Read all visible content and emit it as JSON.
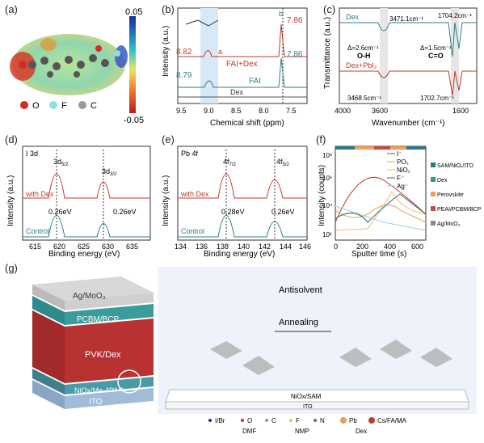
{
  "panel_labels": {
    "a": "(a)",
    "b": "(b)",
    "c": "(c)",
    "d": "(d)",
    "e": "(e)",
    "f": "(f)",
    "g": "(g)"
  },
  "a": {
    "colorbar_max": "0.05",
    "colorbar_min": "-0.05",
    "legend": [
      {
        "label": "O",
        "color": "#d42a2a"
      },
      {
        "label": "F",
        "color": "#8fdde8"
      },
      {
        "label": "C",
        "color": "#9a9a9a"
      }
    ]
  },
  "b": {
    "ylabel": "Intensity (a.u.)",
    "xlabel": "Chemical shift (ppm)",
    "xticks": [
      "9.5",
      "9.0",
      "8.5",
      "8.0",
      "7.5"
    ],
    "peaks_top": {
      "a": "8.82",
      "b": "7.86"
    },
    "peaks_mid": {
      "a": "8.79",
      "b": "7.86"
    },
    "series": [
      "FAI+Dex",
      "FAI",
      "Dex"
    ],
    "mol": {
      "a": "a",
      "b": "b"
    }
  },
  "c": {
    "ylabel": "Transmittance (a.u.)",
    "xlabel": "Wavenumber (cm⁻¹)",
    "xticks": [
      "4000",
      "3600",
      "1600"
    ],
    "series": [
      "Dex",
      "Dex+PbI₂"
    ],
    "ann_top_left": "3471.1cm⁻¹",
    "ann_top_right": "1704.2cm⁻¹",
    "delta_oh": "Δ=2.6cm⁻¹",
    "oh": "O-H",
    "delta_co": "Δ=1.5cm⁻¹",
    "co": "C=O",
    "ann_bot_left": "3468.5cm⁻¹",
    "ann_bot_right": "1702.7cm⁻¹"
  },
  "d": {
    "title": "I 3d",
    "ylabel": "Intensity (a.u.)",
    "xlabel": "Binding energy (eV)",
    "xticks": [
      "615",
      "620",
      "625",
      "630",
      "635"
    ],
    "peak1": "3d",
    "peak1_sub": "5/2",
    "peak2": "3d",
    "peak2_sub": "3/2",
    "shift1": "0.26eV",
    "shift2": "0.26eV",
    "series": [
      "with Dex",
      "Control"
    ]
  },
  "e": {
    "title": "Pb 4f",
    "ylabel": "Intensity (a.u.)",
    "xlabel": "Binding energy (eV)",
    "xticks": [
      "134",
      "136",
      "138",
      "140",
      "142",
      "144",
      "146"
    ],
    "peak1": "4f",
    "peak1_sub": "7/2",
    "peak2": "4f",
    "peak2_sub": "5/2",
    "shift1": "0.28eV",
    "shift2": "0.26eV",
    "series": [
      "with Dex",
      "Control"
    ]
  },
  "f": {
    "ylabel": "Intensity (counts)",
    "xlabel": "Sputter time (s)",
    "xticks": [
      "0",
      "200",
      "400",
      "600"
    ],
    "yticks": [
      "10²",
      "10⁴",
      "10⁶",
      "10⁸"
    ],
    "series": [
      {
        "name": "I⁻",
        "color": "#c0392b"
      },
      {
        "name": "PO₃",
        "color": "#e8a44a"
      },
      {
        "name": "NiO₂",
        "color": "#f0b97a"
      },
      {
        "name": "F⁻",
        "color": "#2d6e6e"
      },
      {
        "name": "Ag⁻",
        "color": "#9ad1e0"
      }
    ],
    "layers": [
      {
        "name": "SAM/NiOₓ/ITO",
        "color": "#2a7a8a"
      },
      {
        "name": "Dex",
        "color": "#2f9a8a"
      },
      {
        "name": "Perovskite",
        "color": "#f0a050"
      },
      {
        "name": "PEAI/PCBM/BCP",
        "color": "#c64a4a"
      },
      {
        "name": "Ag/MoO₃",
        "color": "#888888"
      }
    ]
  },
  "g": {
    "stack": [
      "Ag/MoO₃",
      "PCBM/BCP",
      "PVK/Dex",
      "NiOx/Me-4PACz",
      "ITO"
    ],
    "antisolvent": "Antisolvent",
    "annealing": "Annealing",
    "substrate1": "NiOx/SAM",
    "substrate2": "ITO",
    "legend": [
      {
        "label": "I/Br",
        "color": "#2a2a8a"
      },
      {
        "label": "O",
        "color": "#d42a2a"
      },
      {
        "label": "C",
        "color": "#9a9a9a"
      },
      {
        "label": "F",
        "color": "#f3c74b"
      },
      {
        "label": "N",
        "color": "#4a6ad6"
      },
      {
        "label": "Pb",
        "color": "#e0a060"
      },
      {
        "label": "Cs/FA/MA",
        "color": "#c0392b"
      },
      {
        "label": "DMF",
        "color": "#666"
      },
      {
        "label": "NMP",
        "color": "#666"
      },
      {
        "label": "Dex",
        "color": "#666"
      }
    ]
  }
}
